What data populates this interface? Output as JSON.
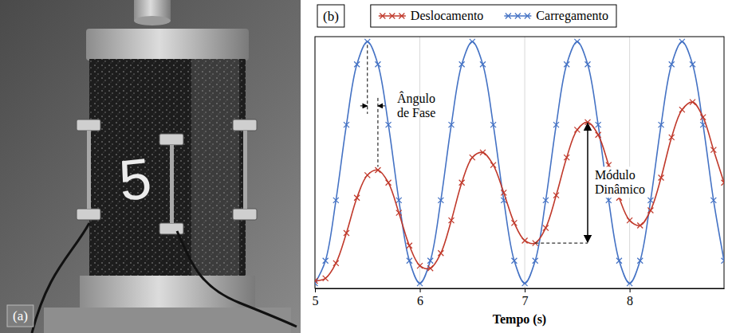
{
  "photo": {
    "panel_label": "(a)",
    "specimen_label": "5"
  },
  "chart_data": {
    "type": "line",
    "panel_label": "(b)",
    "x_label": "Tempo (s)",
    "x": [
      5.0,
      5.1,
      5.2,
      5.3,
      5.4,
      5.5,
      5.6,
      5.7,
      5.8,
      5.9,
      6.0,
      6.1,
      6.2,
      6.3,
      6.4,
      6.5,
      6.6,
      6.7,
      6.8,
      6.9,
      7.0,
      7.1,
      7.2,
      7.3,
      7.4,
      7.5,
      7.6,
      7.7,
      7.8,
      7.9,
      8.0,
      8.1,
      8.2,
      8.3,
      8.4,
      8.5,
      8.6,
      8.7,
      8.8,
      8.9
    ],
    "xlim": [
      5,
      8.9
    ],
    "xticks": [
      5,
      6,
      7,
      8
    ],
    "ylim": [
      0,
      1
    ],
    "tick_labels": "x",
    "grid": true,
    "legend": "top",
    "marker": "x",
    "series": [
      {
        "name": "Deslocamento",
        "color": "#c0392b",
        "values": [
          0.03,
          0.04,
          0.1,
          0.22,
          0.36,
          0.45,
          0.47,
          0.42,
          0.3,
          0.17,
          0.09,
          0.08,
          0.14,
          0.27,
          0.42,
          0.52,
          0.54,
          0.49,
          0.38,
          0.26,
          0.19,
          0.18,
          0.24,
          0.37,
          0.52,
          0.63,
          0.66,
          0.61,
          0.49,
          0.36,
          0.27,
          0.25,
          0.31,
          0.44,
          0.6,
          0.71,
          0.74,
          0.68,
          0.55,
          0.42
        ]
      },
      {
        "name": "Carregamento",
        "color": "#4472c4",
        "values": [
          0.02,
          0.11,
          0.35,
          0.65,
          0.89,
          0.98,
          0.89,
          0.65,
          0.35,
          0.11,
          0.02,
          0.11,
          0.35,
          0.65,
          0.89,
          0.98,
          0.89,
          0.65,
          0.35,
          0.11,
          0.02,
          0.11,
          0.35,
          0.65,
          0.89,
          0.98,
          0.89,
          0.65,
          0.35,
          0.11,
          0.02,
          0.11,
          0.35,
          0.65,
          0.89,
          0.98,
          0.89,
          0.65,
          0.35,
          0.11
        ]
      }
    ],
    "annotations": [
      {
        "text": "Ângulo de Fase"
      },
      {
        "text": "Módulo Dinâmico"
      }
    ]
  }
}
